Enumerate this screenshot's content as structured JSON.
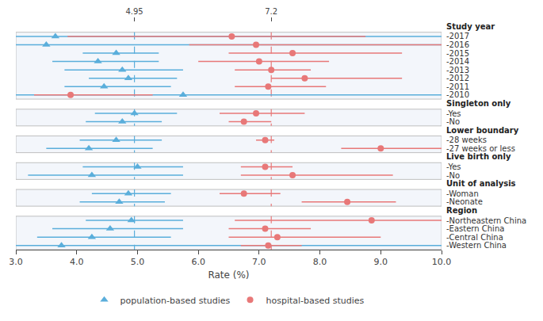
{
  "chart_data": {
    "type": "forest",
    "xlabel": "Rate (%)",
    "xlim": [
      3.0,
      10.0
    ],
    "xticks": [
      {
        "value": 3.0,
        "label": "3.0"
      },
      {
        "value": 4.0,
        "label": "4.0"
      },
      4.95,
      {
        "value": 5.0,
        "label": "5.0"
      },
      {
        "value": 6.0,
        "label": "6.0"
      },
      {
        "value": 7.0,
        "label": "7.0"
      },
      7.2,
      {
        "value": 8.0,
        "label": "8.0"
      },
      {
        "value": 9.0,
        "label": "9.0"
      },
      {
        "value": 10.0,
        "label": "10.0"
      }
    ],
    "grid": false,
    "legend": "bottom",
    "tick_labels": "x",
    "reference_lines": [
      {
        "value": 4.95,
        "color": "#5aaedb"
      },
      {
        "value": 7.2,
        "color": "#e87878"
      }
    ],
    "groups": [
      {
        "label": "Study year",
        "categories": [
          "-2017",
          "-2016",
          "-2015",
          "-2014",
          "-2013",
          "-2012",
          "-2011",
          "-2010"
        ]
      },
      {
        "label": "Singleton only",
        "categories": [
          "-Yes",
          "-No"
        ]
      },
      {
        "label": "Lower boundary",
        "categories": [
          "-28 weeks",
          "-27 weeks or less"
        ]
      },
      {
        "label": "Live birth only",
        "categories": [
          "-Yes",
          "-No"
        ]
      },
      {
        "label": "Unit of analysis",
        "categories": [
          "-Woman",
          "-Neonate"
        ]
      },
      {
        "label": "Region",
        "categories": [
          "-Northeastern China",
          "-Eastern China",
          "-Central China",
          "-Western China"
        ]
      }
    ],
    "series": [
      {
        "name": "population-based studies",
        "color": "#5aaedb",
        "marker": "triangle-up",
        "values": [
          3.65,
          3.5,
          4.65,
          4.35,
          4.75,
          4.85,
          4.45,
          5.75,
          4.95,
          4.75,
          4.65,
          4.2,
          5.0,
          4.25,
          4.85,
          4.7,
          4.9,
          4.55,
          4.25,
          3.75
        ],
        "lo": [
          3.0,
          3.0,
          4.1,
          3.6,
          3.8,
          4.2,
          3.8,
          3.0,
          4.3,
          4.15,
          4.05,
          3.5,
          4.1,
          3.2,
          4.25,
          4.05,
          4.15,
          3.6,
          3.35,
          3.0
        ],
        "hi": [
          10.0,
          10.0,
          5.35,
          5.35,
          5.75,
          5.65,
          5.55,
          10.0,
          5.65,
          5.4,
          5.4,
          5.25,
          5.75,
          5.75,
          5.55,
          5.45,
          5.75,
          5.75,
          5.55,
          10.0
        ]
      },
      {
        "name": "hospital-based studies",
        "color": "#e87878",
        "marker": "circle",
        "values": [
          6.55,
          6.95,
          7.55,
          7.0,
          7.2,
          7.75,
          7.15,
          3.9,
          6.95,
          6.75,
          7.1,
          9.0,
          7.1,
          7.55,
          6.75,
          8.45,
          8.85,
          7.1,
          7.3,
          7.15
        ],
        "lo": [
          3.85,
          5.85,
          6.5,
          6.0,
          6.6,
          7.2,
          6.6,
          3.3,
          6.35,
          6.5,
          6.95,
          8.35,
          6.7,
          6.7,
          6.35,
          7.7,
          6.6,
          6.5,
          6.5,
          6.7
        ],
        "hi": [
          8.75,
          10.0,
          9.35,
          8.15,
          7.85,
          9.35,
          8.1,
          5.25,
          7.75,
          7.2,
          7.25,
          10.0,
          7.55,
          9.2,
          7.35,
          9.25,
          10.0,
          7.85,
          9.0,
          7.7
        ]
      }
    ]
  }
}
